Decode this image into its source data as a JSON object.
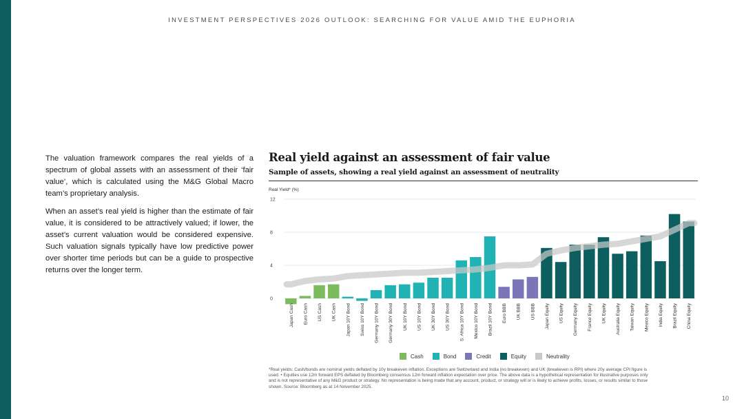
{
  "page": {
    "header": "INVESTMENT PERSPECTIVES 2026 OUTLOOK: SEARCHING FOR VALUE AMID THE EUPHORIA",
    "paragraph1": "The valuation framework compares the real yields of a spectrum of global assets with an assessment of their ‘fair value’, which is calculated using the M&G Global Macro team’s proprietary analysis.",
    "paragraph2": "When an asset’s real yield is higher than the estimate of fair value, it is considered to be attractively valued; if lower, the asset’s current valuation would be considered expensive. Such valuation signals typically have low predictive power over shorter time periods but can be a guide to prospective returns over the longer term.",
    "footnote": "*Real yields: Cash/bonds are nominal yields deflated by 10y breakeven inflation. Exceptions are Switzerland and India (no breakeven) and UK (breakeven is RPI) where 20y average CPI figure is used. • Equities use 12m forward EPS deflated by Bloomberg consensus 12m forward inflation expectation over price. The above data is a hypothetical representation for illustrative purposes only and is not representative of any M&G product or strategy. No representation is being made that any account, product, or strategy will or is likely to achieve profits, losses, or results similar to those shown. Source: Bloomberg as at 14 November 2025.",
    "page_number": "10"
  },
  "colors": {
    "Cash": "#7dbb5f",
    "Bond": "#21b3b3",
    "Credit": "#7b76b8",
    "Equity": "#0d5f5f",
    "Neutrality": "#c8c8c8",
    "sidebar": "#0d5f5f"
  },
  "chart_data": {
    "type": "bar",
    "title": "Real yield against an assessment of fair value",
    "subtitle": "Sample of assets, showing a real yield against an assessment of neutrality",
    "ylabel": "Real Yield* (%)",
    "ylim": [
      -1,
      12
    ],
    "yticks": [
      0,
      4,
      8,
      12
    ],
    "grid": true,
    "legend_position": "bottom",
    "legend": [
      "Cash",
      "Bond",
      "Credit",
      "Equity",
      "Neutrality"
    ],
    "categories": [
      "Japan Cash",
      "Euro Cash",
      "US Cash",
      "UK Cash",
      "Japan 10Y Bond",
      "Swiss 10Y Bond",
      "Germany 10Y Bond",
      "Germany 30Y Bond",
      "UK 10Y Bond",
      "US 10Y Bond",
      "UK 30Y Bond",
      "US 30Y Bond",
      "S. Africa 10Y Bond",
      "Mexico 10Y Bond",
      "Brazil 10Y Bond",
      "Euro BBB",
      "UK BBB",
      "US BBB",
      "Japan Equity",
      "US Equity",
      "Germany Equity",
      "France Equity",
      "UK Equity",
      "Australia Equity",
      "Taiwan Equity",
      "Mexico Equity",
      "India Equity",
      "Brazil Equity",
      "China Equity"
    ],
    "groups": [
      "Cash",
      "Cash",
      "Cash",
      "Cash",
      "Bond",
      "Bond",
      "Bond",
      "Bond",
      "Bond",
      "Bond",
      "Bond",
      "Bond",
      "Bond",
      "Bond",
      "Bond",
      "Credit",
      "Credit",
      "Credit",
      "Equity",
      "Equity",
      "Equity",
      "Equity",
      "Equity",
      "Equity",
      "Equity",
      "Equity",
      "Equity",
      "Equity",
      "Equity"
    ],
    "values": [
      -0.7,
      0.3,
      1.6,
      1.7,
      0.2,
      -0.3,
      1.0,
      1.6,
      1.7,
      1.9,
      2.5,
      2.5,
      4.6,
      5.0,
      7.5,
      1.4,
      2.3,
      2.6,
      6.1,
      4.4,
      6.5,
      6.5,
      7.4,
      5.4,
      5.7,
      7.6,
      4.5,
      10.2,
      9.3
    ],
    "neutrality": [
      1.7,
      2.1,
      2.3,
      2.4,
      2.7,
      2.8,
      2.9,
      3.0,
      3.1,
      3.1,
      3.2,
      3.3,
      3.4,
      3.5,
      3.7,
      4.0,
      4.0,
      4.1,
      5.4,
      5.8,
      6.1,
      6.3,
      6.5,
      6.6,
      6.9,
      7.2,
      7.5,
      8.3,
      9.1
    ]
  }
}
